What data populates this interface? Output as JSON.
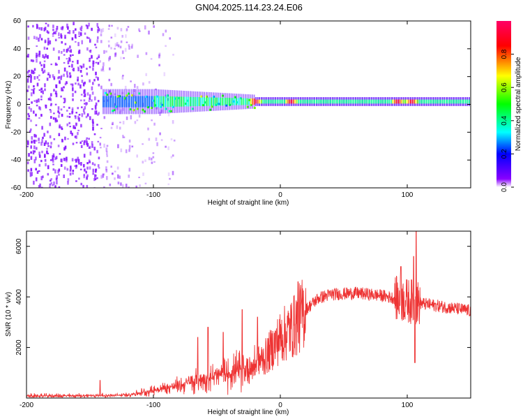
{
  "title": "GN04.2025.114.23.24.E06",
  "chart_data": [
    {
      "type": "heatmap",
      "xlabel": "Height of straight line (km)",
      "ylabel": "Frequency (Hz)",
      "xlim": [
        -200,
        150
      ],
      "ylim": [
        -60,
        60
      ],
      "xticks": [
        -200,
        -100,
        0,
        100
      ],
      "yticks": [
        -60,
        -40,
        -20,
        0,
        20,
        40,
        60
      ],
      "colorbar": {
        "label": "Normalized spectral amplitude",
        "range": [
          0,
          1
        ],
        "ticks": [
          "0.0",
          "0.2",
          "0.4",
          "0.6",
          "0.8"
        ],
        "colors": [
          "#ffffff",
          "#8800ff",
          "#0000ff",
          "#00ffff",
          "#00ff00",
          "#ffff00",
          "#ff0000",
          "#ff0080"
        ]
      },
      "features": {
        "band_center_hz": 2,
        "band_start_km": -140,
        "broadband_noise_until_km": -100,
        "hotspots_km": [
          -20,
          8,
          92,
          103
        ]
      }
    },
    {
      "type": "line",
      "xlabel": "Height of straight line (km)",
      "ylabel": "SNR (10 * v/v)",
      "xlim": [
        -200,
        150
      ],
      "ylim": [
        0,
        6600
      ],
      "xticks": [
        -200,
        -100,
        0,
        100
      ],
      "yticks": [
        2000,
        4000,
        6000
      ],
      "color": "#ee3333",
      "envelope": {
        "x": [
          -200,
          -160,
          -130,
          -120,
          -100,
          -80,
          -60,
          -40,
          -25,
          -12,
          0,
          10,
          20,
          30,
          40,
          60,
          80,
          90,
          100,
          110,
          130,
          150
        ],
        "y": [
          80,
          90,
          100,
          130,
          300,
          500,
          750,
          1000,
          1200,
          1600,
          2400,
          2800,
          3500,
          3950,
          4100,
          4150,
          4050,
          3950,
          3850,
          3750,
          3600,
          3450
        ]
      },
      "spikes": [
        {
          "x": -142,
          "y": 700
        },
        {
          "x": -65,
          "y": 2400
        },
        {
          "x": -57,
          "y": 2800
        },
        {
          "x": -45,
          "y": 2600
        },
        {
          "x": -30,
          "y": 3500
        },
        {
          "x": -18,
          "y": 3200
        },
        {
          "x": 14,
          "y": 4600
        },
        {
          "x": 95,
          "y": 5200
        },
        {
          "x": 105,
          "y": 5600
        },
        {
          "x": 107,
          "y": 6600
        },
        {
          "x": 106,
          "y": 1400
        }
      ]
    }
  ]
}
